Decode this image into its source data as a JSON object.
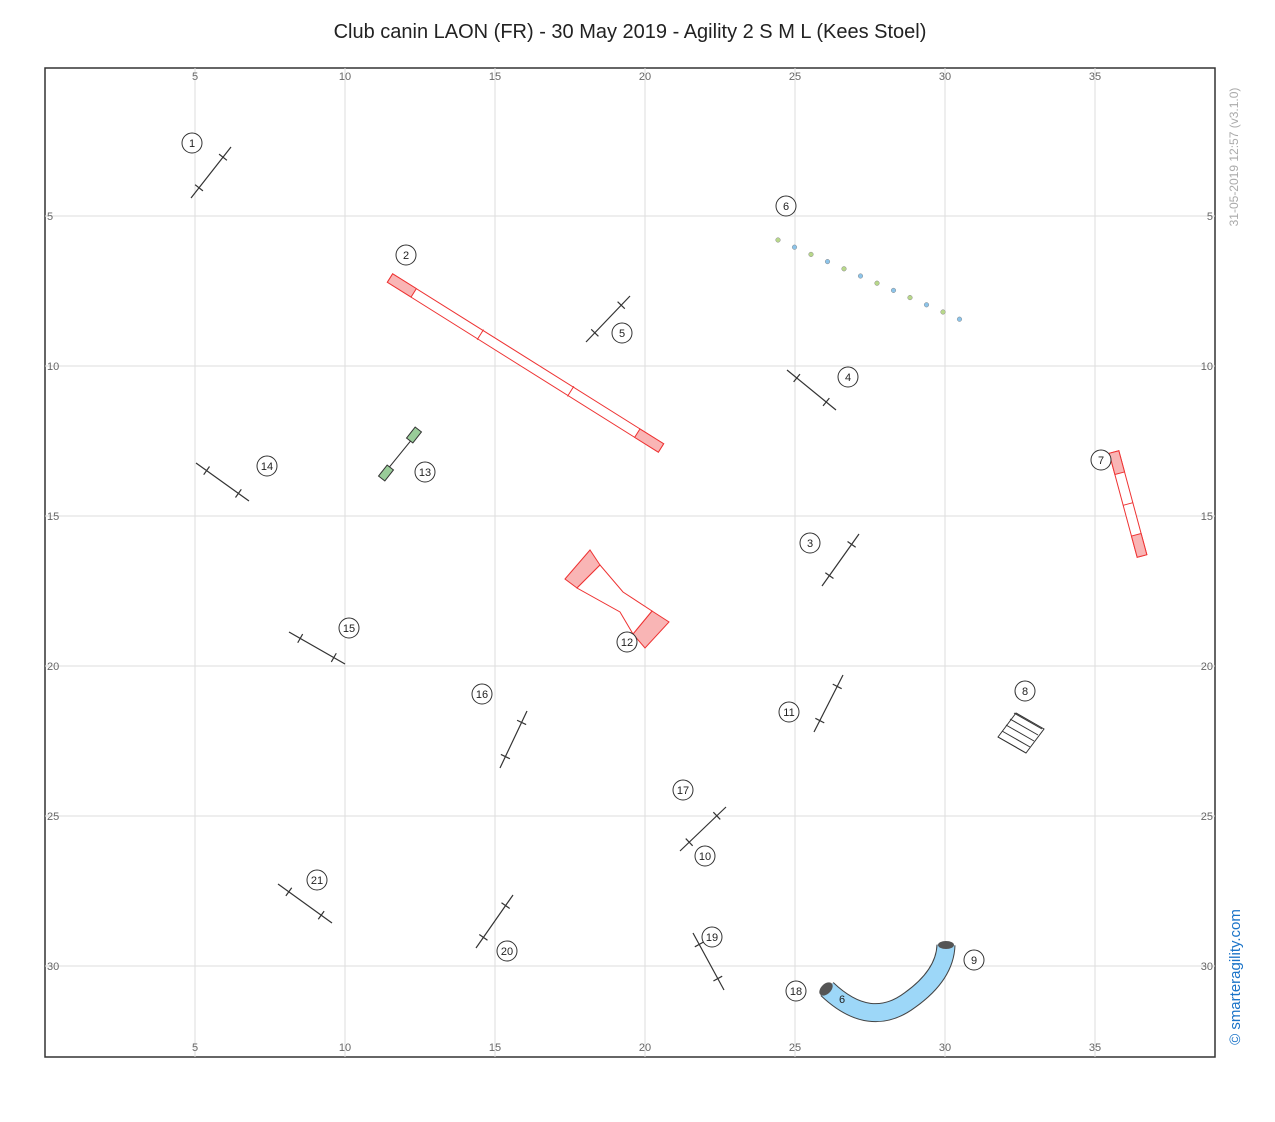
{
  "course": {
    "title": "Club canin LAON (FR) - 30 May 2019 - Agility 2 S M L (Kees Stoel)",
    "x_ticks": [
      5,
      10,
      15,
      20,
      25,
      30,
      35
    ],
    "y_ticks": [
      5,
      10,
      15,
      20,
      25,
      30
    ],
    "timestamp": "31-05-2019 12:57  (v3.1.0)",
    "credit": "© smarteragility.com",
    "obstacle_numbers": [
      "1",
      "2",
      "3",
      "4",
      "5",
      "6",
      "7",
      "8",
      "9",
      "10",
      "11",
      "12",
      "13",
      "14",
      "15",
      "16",
      "17",
      "18",
      "19",
      "20",
      "21"
    ],
    "tunnel_entry_label": "6"
  }
}
